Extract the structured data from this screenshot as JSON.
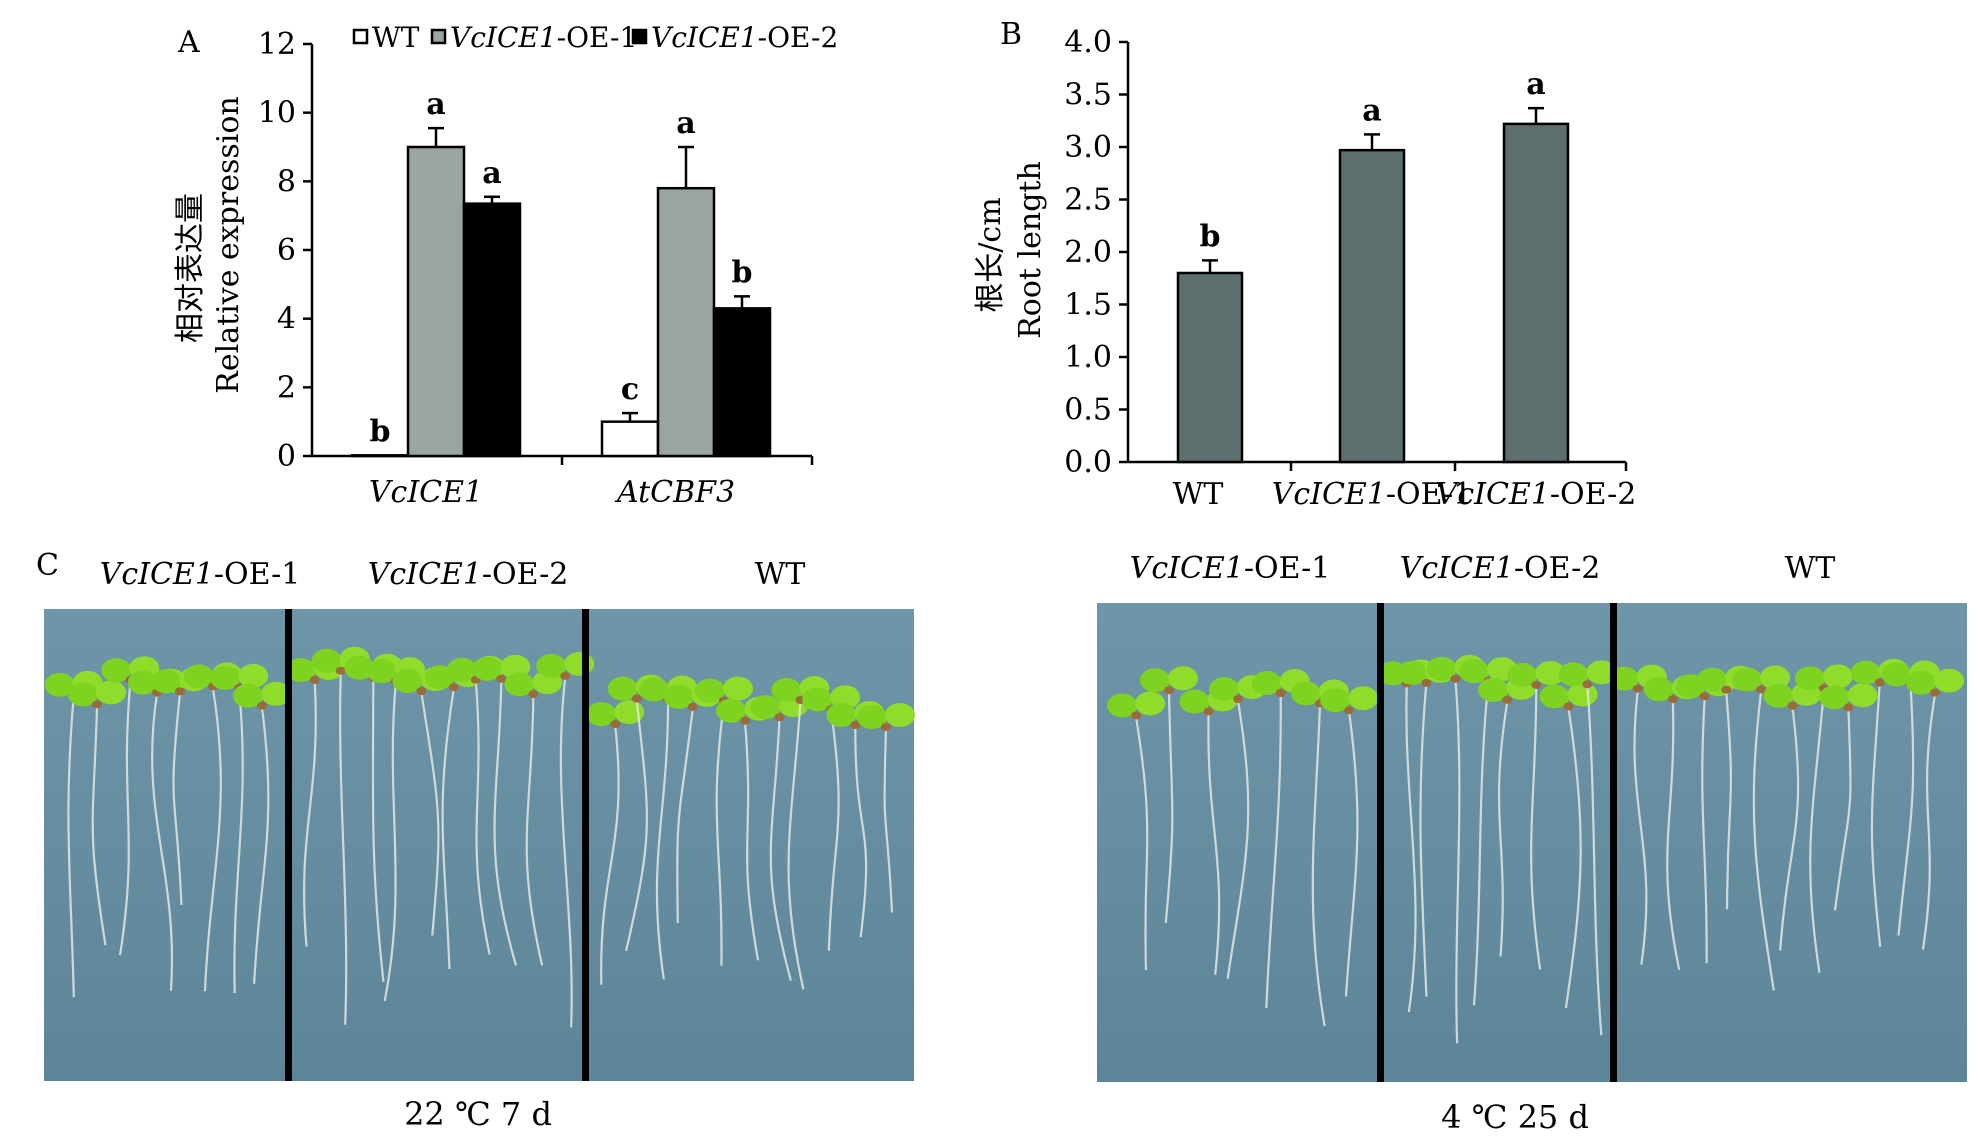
{
  "panels": {
    "a": "A",
    "b": "B",
    "c": "C"
  },
  "chart_data": [
    {
      "type": "bar",
      "panel": "A",
      "ylabel_cn": "相对表达量",
      "ylabel": "Relative expression",
      "ylim": [
        0,
        12
      ],
      "yticks": [
        "0",
        "2",
        "4",
        "6",
        "8",
        "10",
        "12"
      ],
      "categories": [
        "VcICE1",
        "AtCBF3"
      ],
      "legend_placement": "top",
      "series": [
        {
          "name": "WT",
          "color": "#ffffff",
          "values": [
            0.02,
            1.0
          ],
          "errors": [
            0,
            0.25
          ],
          "labels": [
            "b",
            "c"
          ]
        },
        {
          "name": "VcICE1-OE-1",
          "color": "#9aa5a3",
          "values": [
            9.0,
            7.8
          ],
          "errors": [
            0.55,
            1.2
          ],
          "labels": [
            "a",
            "a"
          ]
        },
        {
          "name": "VcICE1-OE-2",
          "color": "#000000",
          "values": [
            7.35,
            4.3
          ],
          "errors": [
            0.2,
            0.35
          ],
          "labels": [
            "a",
            "b"
          ]
        }
      ]
    },
    {
      "type": "bar",
      "panel": "B",
      "ylabel_cn": "根长/cm",
      "ylabel": "Root length",
      "ylim": [
        0,
        4.0
      ],
      "yticks": [
        "0.0",
        "0.5",
        "1.0",
        "1.5",
        "2.0",
        "2.5",
        "3.0",
        "3.5",
        "4.0"
      ],
      "categories": [
        "WT",
        "VcICE1-OE-1",
        "VcICE1-OE-2"
      ],
      "color": "#5c6e6e",
      "values": [
        1.8,
        2.97,
        3.22
      ],
      "errors": [
        0.12,
        0.15,
        0.15
      ],
      "labels": [
        "b",
        "a",
        "a"
      ]
    }
  ],
  "photos": {
    "left": {
      "labels": [
        "VcICE1-OE-1",
        "VcICE1-OE-2",
        "WT"
      ],
      "condition": "22 ℃ 7 d"
    },
    "right": {
      "labels": [
        "VcICE1-OE-1",
        "VcICE1-OE-2",
        "WT"
      ],
      "condition": "4 ℃ 25 d"
    }
  }
}
